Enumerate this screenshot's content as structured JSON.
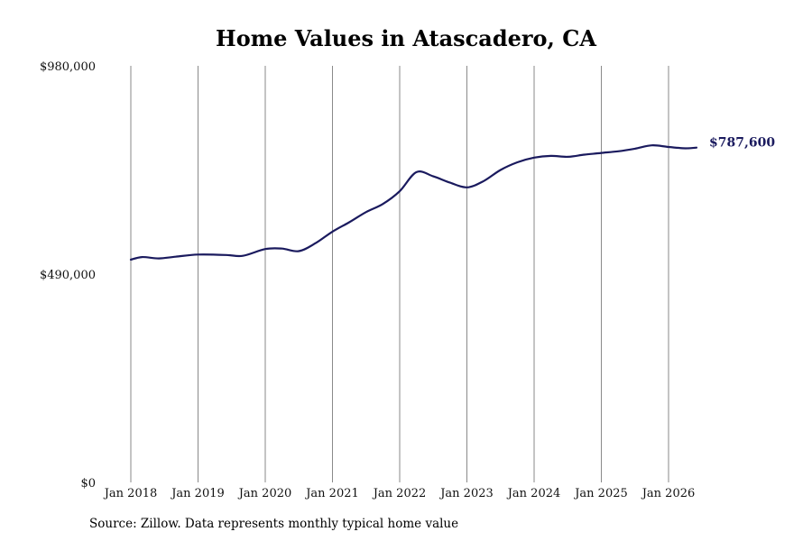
{
  "chart_data": {
    "type": "line",
    "title": "Home Values in Atascadero, CA",
    "xlabel": "",
    "ylabel": "",
    "ylim": [
      0,
      980000
    ],
    "y_ticks": [
      "$0",
      "$490,000",
      "$980,000"
    ],
    "y_tick_values": [
      0,
      490000,
      980000
    ],
    "x_ticks": [
      "Jan 2018",
      "Jan 2019",
      "Jan 2020",
      "Jan 2021",
      "Jan 2022",
      "Jan 2023",
      "Jan 2024",
      "Jan 2025",
      "Jan 2026"
    ],
    "x_tick_values": [
      "2018-01",
      "2019-01",
      "2020-01",
      "2021-01",
      "2022-01",
      "2023-01",
      "2024-01",
      "2025-01",
      "2026-01"
    ],
    "xlim": [
      "2018-01",
      "2026-06"
    ],
    "grid": "vertical",
    "color": "#1a1a5e",
    "series": [
      {
        "name": "",
        "x": [
          "2018-01",
          "2018-03",
          "2018-06",
          "2018-09",
          "2019-01",
          "2019-06",
          "2019-09",
          "2020-01",
          "2020-04",
          "2020-07",
          "2020-10",
          "2021-01",
          "2021-04",
          "2021-07",
          "2021-10",
          "2022-01",
          "2022-04",
          "2022-07",
          "2022-10",
          "2023-01",
          "2023-04",
          "2023-07",
          "2023-10",
          "2024-01",
          "2024-04",
          "2024-07",
          "2024-10",
          "2025-01",
          "2025-04",
          "2025-07",
          "2025-10",
          "2026-01",
          "2026-04",
          "2026-06"
        ],
        "values": [
          524000,
          530000,
          527000,
          531000,
          536000,
          535000,
          533000,
          549000,
          550000,
          544000,
          563000,
          590000,
          612000,
          636000,
          655000,
          685000,
          730000,
          720000,
          705000,
          694000,
          709000,
          735000,
          753000,
          764000,
          768000,
          766000,
          771000,
          775000,
          779000,
          785000,
          793000,
          789000,
          786000,
          787600
        ]
      }
    ],
    "end_label": "$787,600",
    "source": "Source: Zillow. Data represents monthly typical home value"
  }
}
